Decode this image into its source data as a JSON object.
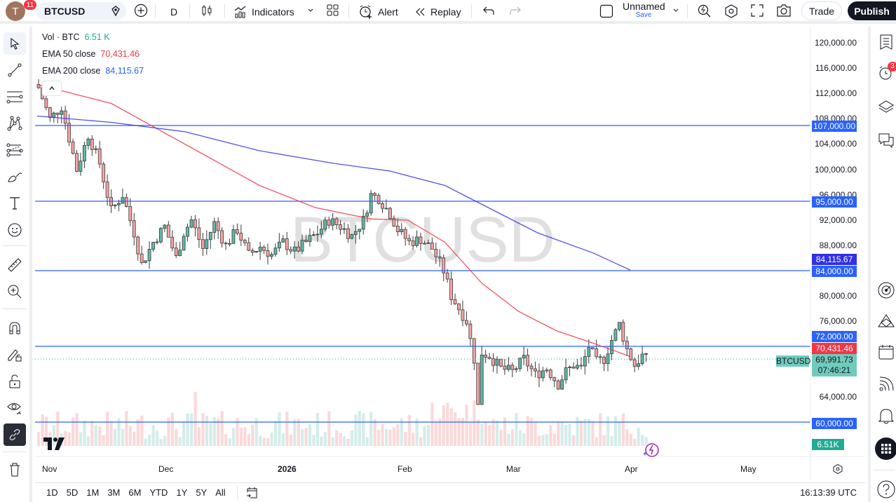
{
  "topbar": {
    "avatar_letter": "T",
    "notifications": "11",
    "symbol": "BTCUSD",
    "interval": "D",
    "indicators_label": "Indicators",
    "alert_label": "Alert",
    "replay_label": "Replay",
    "layout_name": "Unnamed",
    "layout_save": "Save",
    "trade_label": "Trade",
    "publish_label": "Publish"
  },
  "legend": {
    "vol_label": "Vol · BTC",
    "vol_value": "6.51 K",
    "ema50_label": "EMA 50 close",
    "ema50_value": "70,431.46",
    "ema200_label": "EMA 200 close",
    "ema200_value": "84,115.67"
  },
  "colors": {
    "up": "#26a69a",
    "down": "#ef5350",
    "ema50": "#f23645",
    "ema200": "#2962ff",
    "hline": "#2962ff",
    "price_tag": "#70cbbc"
  },
  "watermark": "BTCUSD",
  "price_axis": [
    "120,000.00",
    "116,000.00",
    "112,000.00",
    "108,000.00",
    "104,000.00",
    "100,000.00",
    "96,000.00",
    "92,000.00",
    "88,000.00",
    "80,000.00",
    "76,000.00",
    "64,000.00"
  ],
  "price_tags": {
    "h107": "107,000.00",
    "h95": "95,000.00",
    "ema200": "84,115.67",
    "h84": "84,000.00",
    "h72": "72,000.00",
    "ema50": "70,431.46",
    "last_symbol": "BTCUSD",
    "last_price": "69,991.73",
    "countdown": "07:46:21",
    "h60": "60,000.00",
    "vol": "6.51K"
  },
  "time_axis": [
    "Nov",
    "Dec",
    "2026",
    "Feb",
    "Mar",
    "Apr",
    "May"
  ],
  "bottombar": {
    "ranges": [
      "1D",
      "5D",
      "1M",
      "3M",
      "6M",
      "YTD",
      "1Y",
      "5Y",
      "All"
    ],
    "clock": "16:13:39 UTC"
  },
  "right_badge": "3",
  "chart_data": {
    "type": "candlestick",
    "title": "BTCUSD, 1D",
    "horizontal_lines": [
      107000,
      95000,
      84000,
      72000,
      60000
    ],
    "ema50_last": 70431.46,
    "ema200_last": 84115.67,
    "last_price": 69991.73,
    "y_range": [
      56000,
      122000
    ],
    "x_ticks": [
      "Nov",
      "Dec",
      "2026",
      "Feb",
      "Mar",
      "Apr",
      "May"
    ]
  }
}
